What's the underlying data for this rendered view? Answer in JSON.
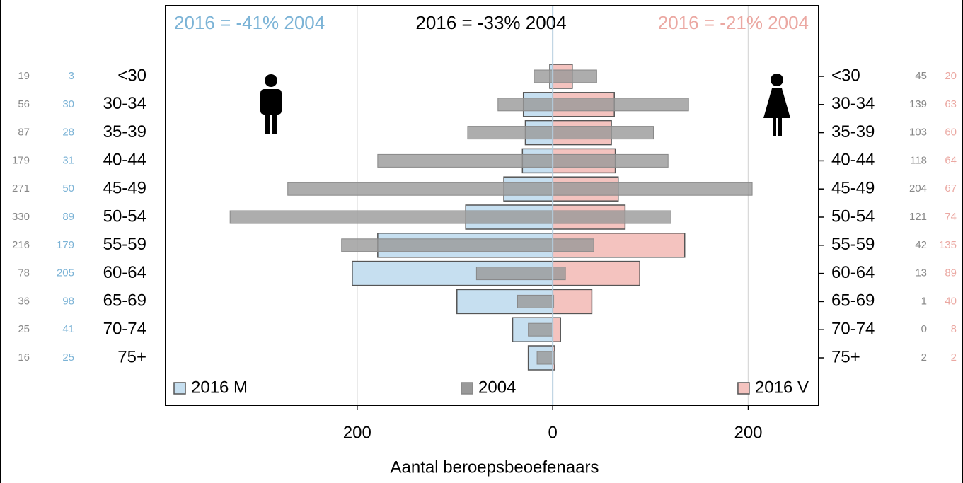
{
  "chart_data": {
    "type": "pyramid",
    "titles": [
      {
        "text": "2016 =  -41% 2004",
        "color": "#7bb3d6"
      },
      {
        "text": "2016 =  -33% 2004",
        "color": "#000000"
      },
      {
        "text": "2016 =  -21% 2004",
        "color": "#eba8a2"
      }
    ],
    "x_label": "Aantal beroepsbeoefenaars",
    "categories": [
      "<30",
      "30-34",
      "35-39",
      "40-44",
      "45-49",
      "50-54",
      "55-59",
      "60-64",
      "65-69",
      "70-74",
      "75+"
    ],
    "series": [
      {
        "name": "2016 M",
        "color": "#c6dff0",
        "values": [
          3,
          30,
          28,
          31,
          50,
          89,
          179,
          205,
          98,
          41,
          25
        ]
      },
      {
        "name": "2004",
        "color": "#999999",
        "values_m": [
          19,
          56,
          87,
          179,
          271,
          330,
          216,
          78,
          36,
          25,
          16
        ],
        "values_v": [
          45,
          139,
          103,
          118,
          204,
          121,
          42,
          13,
          1,
          0,
          2
        ]
      },
      {
        "name": "2016 V",
        "color": "#f4c3bf",
        "values": [
          20,
          63,
          60,
          64,
          67,
          74,
          135,
          89,
          40,
          8,
          2
        ]
      }
    ],
    "xlim": [
      -396,
      272
    ],
    "xticks": [
      {
        "value": -200,
        "label": "200"
      },
      0,
      200
    ],
    "grid": true
  }
}
